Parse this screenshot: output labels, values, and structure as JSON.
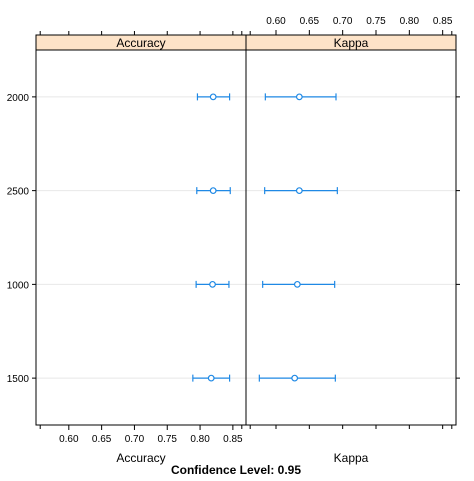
{
  "chart_data": {
    "type": "dotplot-errorbar",
    "categories": [
      "2000",
      "2500",
      "1000",
      "1500"
    ],
    "panels": [
      {
        "name": "Accuracy",
        "xlabel": "Accuracy",
        "xlim": [
          0.55,
          0.87
        ],
        "ticks": [
          "0.60",
          "0.65",
          "0.70",
          "0.75",
          "0.80",
          "0.85"
        ],
        "tick_axis": "bottom",
        "points": [
          {
            "category": "2000",
            "estimate": 0.82,
            "lower": 0.796,
            "upper": 0.845
          },
          {
            "category": "2500",
            "estimate": 0.82,
            "lower": 0.795,
            "upper": 0.846
          },
          {
            "category": "1000",
            "estimate": 0.819,
            "lower": 0.794,
            "upper": 0.844
          },
          {
            "category": "1500",
            "estimate": 0.817,
            "lower": 0.789,
            "upper": 0.845
          }
        ]
      },
      {
        "name": "Kappa",
        "xlabel": "Kappa",
        "xlim": [
          0.555,
          0.87
        ],
        "ticks": [
          "0.60",
          "0.65",
          "0.70",
          "0.75",
          "0.80",
          "0.85"
        ],
        "tick_axis": "top",
        "points": [
          {
            "category": "2000",
            "estimate": 0.635,
            "lower": 0.584,
            "upper": 0.69
          },
          {
            "category": "2500",
            "estimate": 0.635,
            "lower": 0.583,
            "upper": 0.692
          },
          {
            "category": "1000",
            "estimate": 0.632,
            "lower": 0.58,
            "upper": 0.688
          },
          {
            "category": "1500",
            "estimate": 0.628,
            "lower": 0.575,
            "upper": 0.689
          }
        ]
      }
    ],
    "footer": "Confidence Level: 0.95",
    "grid": true,
    "colors": {
      "strip": "#fde3c8",
      "point": "#1f89e5",
      "grid": "#e8e8e8",
      "frame": "#000000"
    }
  }
}
